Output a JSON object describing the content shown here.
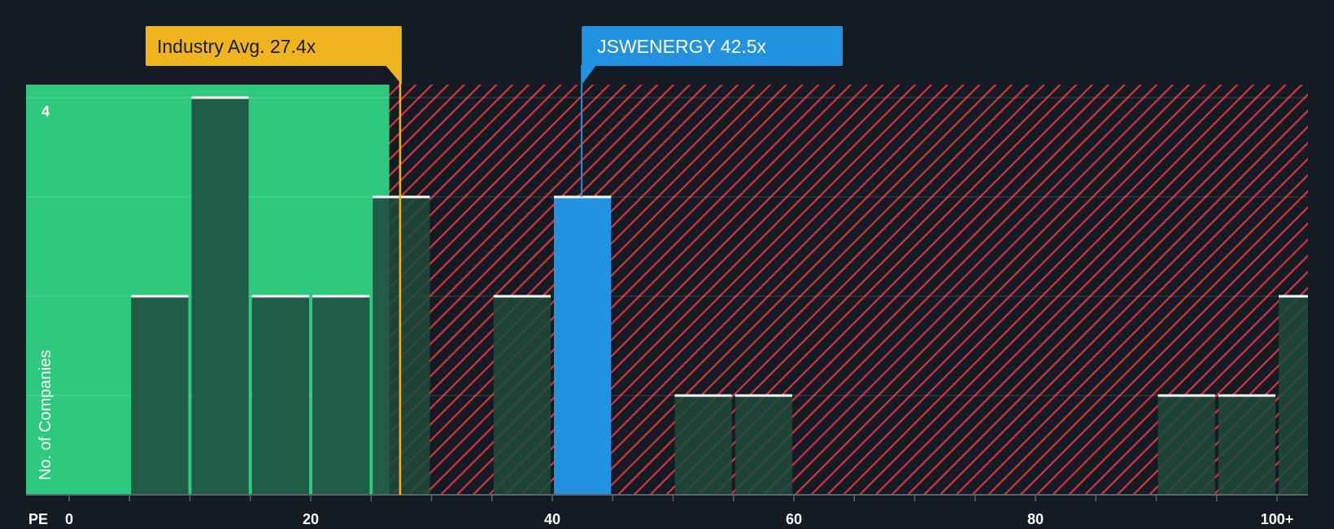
{
  "chart_data": {
    "type": "bar",
    "title": "",
    "xlabel": "PE",
    "ylabel": "No. of Companies",
    "xlim": [
      0,
      103
    ],
    "ylim": [
      0,
      4.15
    ],
    "bin_width": 5,
    "bins": [
      {
        "start": 5,
        "count": 2
      },
      {
        "start": 10,
        "count": 4
      },
      {
        "start": 15,
        "count": 2
      },
      {
        "start": 20,
        "count": 2
      },
      {
        "start": 25,
        "count": 3
      },
      {
        "start": 35,
        "count": 2
      },
      {
        "start": 40,
        "count": 3,
        "highlight": true
      },
      {
        "start": 50,
        "count": 1
      },
      {
        "start": 55,
        "count": 1
      },
      {
        "start": 90,
        "count": 1
      },
      {
        "start": 95,
        "count": 1
      },
      {
        "start": 100,
        "count": 2
      }
    ],
    "x_ticks": [
      {
        "value": 0,
        "label": "0"
      },
      {
        "value": 20,
        "label": "20"
      },
      {
        "value": 40,
        "label": "40"
      },
      {
        "value": 60,
        "label": "60"
      },
      {
        "value": 80,
        "label": "80"
      },
      {
        "value": 100,
        "label": "100+"
      }
    ],
    "y_tick_label": {
      "value": 4,
      "label": "4"
    },
    "fair_value_threshold": 26.5,
    "industry_avg": {
      "value": 27.4,
      "label": "Industry Avg. 27.4x"
    },
    "company": {
      "name": "JSWENERGY",
      "value": 42.5,
      "label": "JSWENERGY 42.5x"
    }
  },
  "colors": {
    "background": "#151b24",
    "green_zone": "#2fc97e",
    "red_zone": "#d8343a",
    "bar_dark": "#1e4a3c",
    "bar_highlight": "#2191e0",
    "industry_callout": "#f0b41e",
    "company_callout": "#2191e0"
  }
}
